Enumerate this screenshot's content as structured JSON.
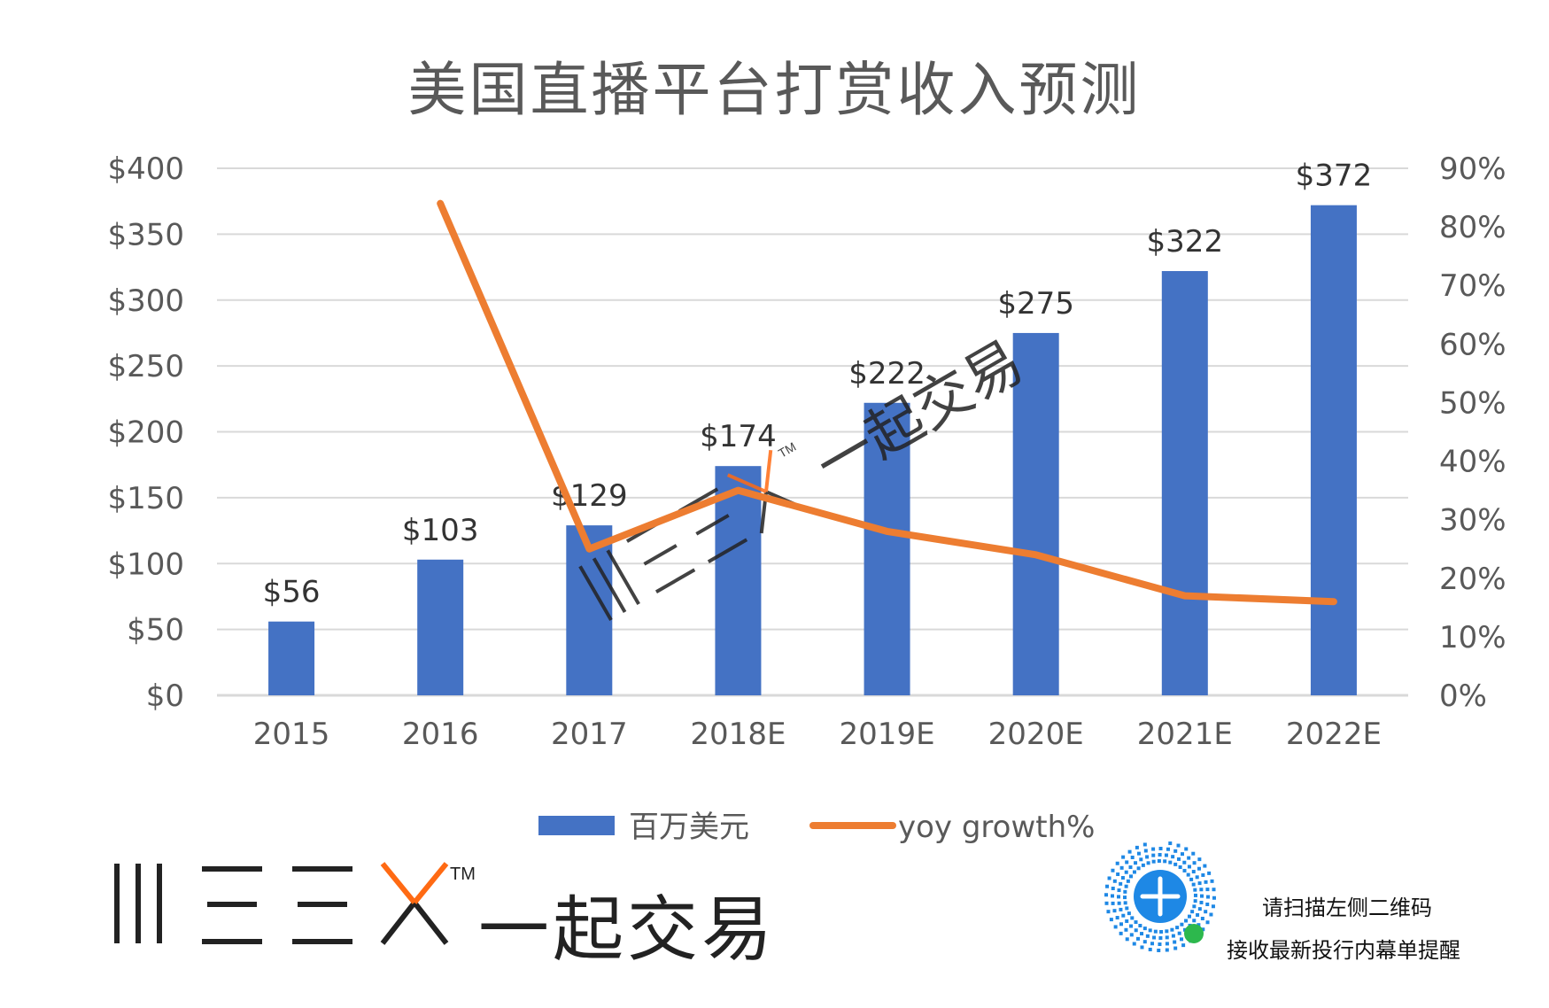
{
  "chart_data": {
    "type": "bar",
    "title": "美国直播平台打赏收入预测",
    "categories": [
      "2015",
      "2016",
      "2017",
      "2018E",
      "2019E",
      "2020E",
      "2021E",
      "2022E"
    ],
    "series": [
      {
        "name": "百万美元",
        "type": "bar",
        "axis": "left",
        "color": "#4472C4",
        "values": [
          56,
          103,
          129,
          174,
          222,
          275,
          322,
          372
        ],
        "labels": [
          "$56",
          "$103",
          "$129",
          "$174",
          "$222",
          "$275",
          "$322",
          "$372"
        ]
      },
      {
        "name": "yoy growth%",
        "type": "line",
        "axis": "right",
        "color": "#ED7D31",
        "values": [
          null,
          84,
          25,
          35,
          28,
          24,
          17,
          16
        ]
      }
    ],
    "y_left": {
      "min": 0,
      "max": 400,
      "step": 50,
      "ticks": [
        "$0",
        "$50",
        "$100",
        "$150",
        "$200",
        "$250",
        "$300",
        "$350",
        "$400"
      ]
    },
    "y_right": {
      "min": 0,
      "max": 90,
      "step": 10,
      "ticks": [
        "0%",
        "10%",
        "20%",
        "30%",
        "40%",
        "50%",
        "60%",
        "70%",
        "80%",
        "90%"
      ]
    },
    "grid": true,
    "legend": "bottom"
  },
  "watermark": {
    "brand_mark": "||| ≡ ≡ X™",
    "brand_text": "一起交易"
  },
  "footer": {
    "brand_text": "一起交易",
    "qr_line1": "请扫描左侧二维码",
    "qr_line2": "接收最新投行内幕单提醒"
  },
  "colors": {
    "bar": "#4472C4",
    "line": "#ED7D31",
    "grid": "#d9d9d9",
    "text": "#595959",
    "accent": "#FF6A13"
  }
}
